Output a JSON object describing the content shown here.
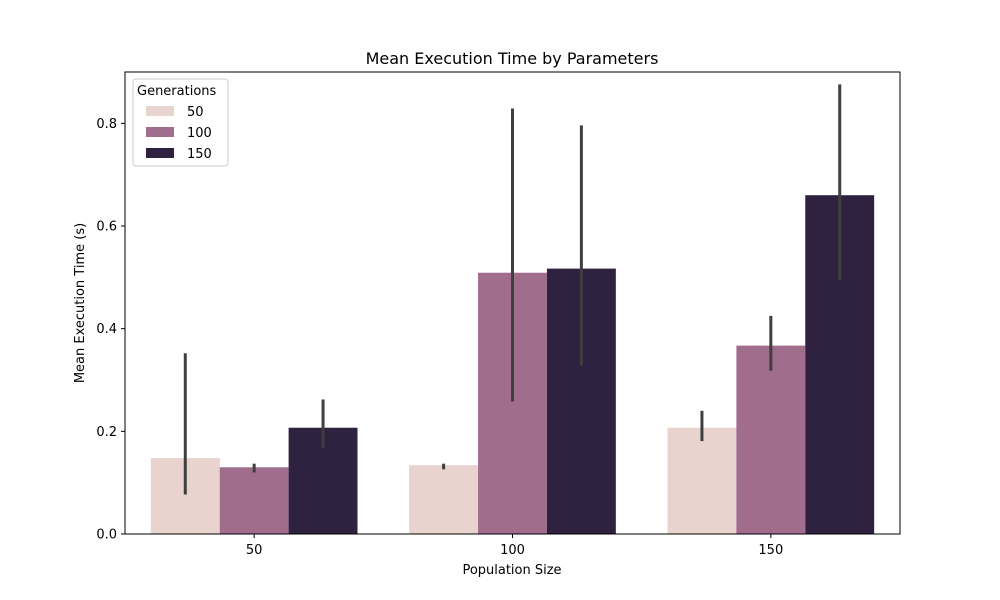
{
  "chart_data": {
    "type": "bar",
    "title": "Mean Execution Time by Parameters",
    "xlabel": "Population Size",
    "ylabel": "Mean Execution Time (s)",
    "categories": [
      "50",
      "100",
      "150"
    ],
    "ylim": [
      0,
      0.9
    ],
    "yticks": [
      0.0,
      0.2,
      0.4,
      0.6,
      0.8
    ],
    "ytick_labels": [
      "0.0",
      "0.2",
      "0.4",
      "0.6",
      "0.8"
    ],
    "grid": false,
    "legend": {
      "title": "Generations",
      "placement": "top-left"
    },
    "series": [
      {
        "name": "50",
        "color": "#e8d3cf",
        "values": [
          0.148,
          0.134,
          0.207
        ],
        "error_low": [
          0.077,
          0.126,
          0.181
        ],
        "error_high": [
          0.352,
          0.137,
          0.24
        ]
      },
      {
        "name": "100",
        "color": "#a16d8c",
        "values": [
          0.13,
          0.509,
          0.367
        ],
        "error_low": [
          0.12,
          0.258,
          0.318
        ],
        "error_high": [
          0.137,
          0.829,
          0.425
        ]
      },
      {
        "name": "150",
        "color": "#2f2240",
        "values": [
          0.207,
          0.517,
          0.66
        ],
        "error_low": [
          0.168,
          0.328,
          0.494
        ],
        "error_high": [
          0.262,
          0.796,
          0.876
        ]
      }
    ],
    "errorbar_color": "#3f3f3f"
  }
}
